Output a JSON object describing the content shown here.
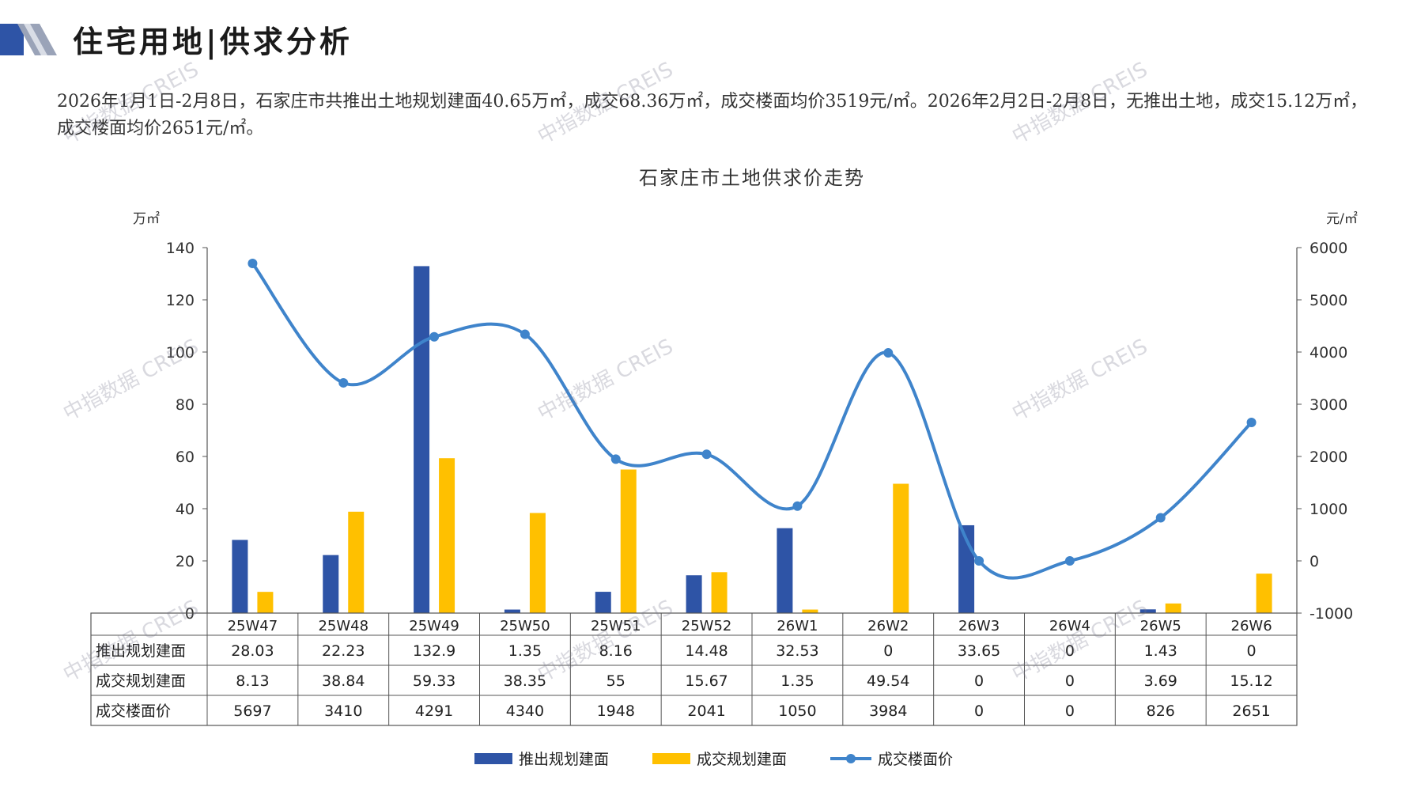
{
  "header": {
    "title": "住宅用地|供求分析"
  },
  "intro": "2026年1月1日-2月8日，石家庄市共推出土地规划建面40.65万㎡，成交68.36万㎡，成交楼面均价3519元/㎡。2026年2月2日-2月8日，无推出土地，成交15.12万㎡，成交楼面均价2651元/㎡。",
  "watermark": "中指数据 CREIS",
  "colors": {
    "supply": "#2E54A6",
    "deal": "#FFC000",
    "price": "#3F84CB",
    "axis": "#555555"
  },
  "chart_data": {
    "type": "bar",
    "title": "石家庄市土地供求价走势",
    "ylabel_left": "万㎡",
    "ylabel_right": "元/㎡",
    "ylim_left": [
      0,
      140
    ],
    "yticks_left": [
      0,
      20,
      40,
      60,
      80,
      100,
      120,
      140
    ],
    "ylim_right": [
      -1000,
      6000
    ],
    "yticks_right": [
      -1000,
      0,
      1000,
      2000,
      3000,
      4000,
      5000,
      6000
    ],
    "categories": [
      "25W47",
      "25W48",
      "25W49",
      "25W50",
      "25W51",
      "25W52",
      "26W1",
      "26W2",
      "26W3",
      "26W4",
      "26W5",
      "26W6"
    ],
    "series": [
      {
        "name": "推出规划建面",
        "type": "bar",
        "axis": "left",
        "values": [
          28.03,
          22.23,
          132.9,
          1.35,
          8.16,
          14.48,
          32.53,
          0,
          33.65,
          0,
          1.43,
          0
        ],
        "labels": [
          "28.03",
          "22.23",
          "132.9",
          "1.35",
          "8.16",
          "14.48",
          "32.53",
          "0",
          "33.65",
          "0",
          "1.43",
          "0"
        ]
      },
      {
        "name": "成交规划建面",
        "type": "bar",
        "axis": "left",
        "values": [
          8.13,
          38.84,
          59.33,
          38.35,
          55,
          15.67,
          1.35,
          49.54,
          0,
          0,
          3.69,
          15.12
        ],
        "labels": [
          "8.13",
          "38.84",
          "59.33",
          "38.35",
          "55",
          "15.67",
          "1.35",
          "49.54",
          "0",
          "0",
          "3.69",
          "15.12"
        ]
      },
      {
        "name": "成交楼面价",
        "type": "line",
        "axis": "right",
        "values": [
          5697,
          3410,
          4291,
          4340,
          1948,
          2041,
          1050,
          3984,
          0,
          0,
          826,
          2651
        ],
        "labels": [
          "5697",
          "3410",
          "4291",
          "4340",
          "1948",
          "2041",
          "1050",
          "3984",
          "0",
          "0",
          "826",
          "2651"
        ]
      }
    ],
    "legend": "bottom",
    "grid": false
  }
}
